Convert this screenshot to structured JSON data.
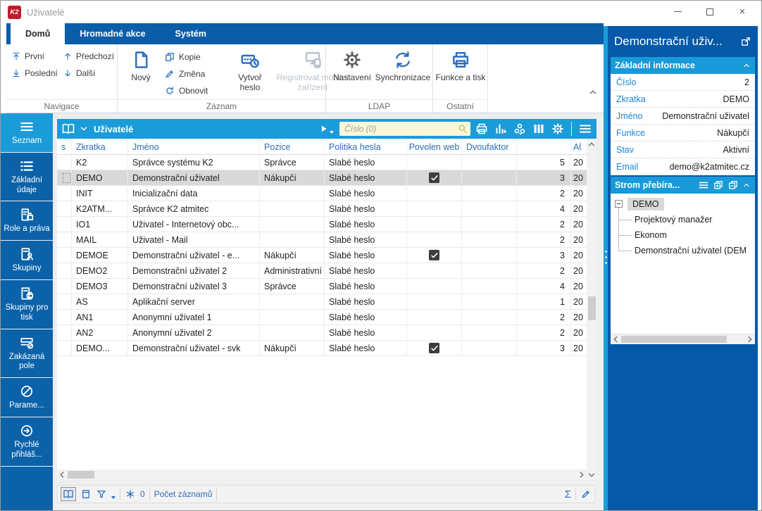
{
  "colors": {
    "accent_cyan": "#1b9cd8",
    "ribbon_blue": "#0a5ea9",
    "panel_blue": "#0559a8",
    "sidebar_blue": "#0b62a9",
    "icon_blue": "#2a6fbd",
    "selection_grey": "#d9d9d9",
    "search_bg": "#fcf8d7",
    "k2_red": "#c2182b"
  },
  "window": {
    "logo_text": "K2",
    "title": "Uživatelé"
  },
  "ribbon": {
    "tabs": [
      {
        "label": "Domů",
        "active": true
      },
      {
        "label": "Hromadné akce",
        "active": false
      },
      {
        "label": "Systém",
        "active": false
      }
    ],
    "navigace": {
      "label": "Navigace",
      "items": [
        {
          "label": "První",
          "icon": "first-icon"
        },
        {
          "label": "Poslední",
          "icon": "last-icon"
        },
        {
          "label": "Předchozí",
          "icon": "previous-icon"
        },
        {
          "label": "Další",
          "icon": "next-icon"
        }
      ]
    },
    "zaznam": {
      "label": "Záznam",
      "novy": "Nový",
      "kopie": "Kopie",
      "zmena": "Změna",
      "obnovit": "Obnovit",
      "vytvor_heslo": "Vytvoř heslo",
      "registrovat": "Registrovat mobilní zařízení"
    },
    "ldap": {
      "label": "LDAP",
      "nastaveni": "Nastavení",
      "synchronizace": "Synchronizace"
    },
    "ostatni": {
      "label": "Ostatní",
      "funkce_a_tisk": "Funkce a tisk"
    }
  },
  "sidebar": {
    "items": [
      {
        "key": "seznam",
        "label": "Seznam",
        "icon": "hamburger-icon",
        "active": true
      },
      {
        "key": "zakladni-udaje",
        "label": "Základní údaje",
        "icon": "list-icon",
        "active": false
      },
      {
        "key": "role-a-prava",
        "label": "Role a práva",
        "icon": "document-lock-icon",
        "active": false
      },
      {
        "key": "skupiny",
        "label": "Skupiny",
        "icon": "document-person-icon",
        "active": false
      },
      {
        "key": "skupiny-pro-tisk",
        "label": "Skupiny pro tisk",
        "icon": "document-printer-icon",
        "active": false
      },
      {
        "key": "zakazana-pole",
        "label": "Zakázaná pole",
        "icon": "forbidden-field-icon",
        "active": false
      },
      {
        "key": "parametry",
        "label": "Parame...",
        "icon": "circle-slash-icon",
        "active": false
      },
      {
        "key": "rychle-prihlaseni",
        "label": "Rychlé přihláš...",
        "icon": "circle-arrow-icon",
        "active": false
      }
    ]
  },
  "table": {
    "title": "Uživatelé",
    "search_placeholder": "Číslo (0)",
    "columns": [
      {
        "label": "s"
      },
      {
        "label": "Zkratka"
      },
      {
        "label": "Jméno"
      },
      {
        "label": "Pozice"
      },
      {
        "label": "Politika hesla"
      },
      {
        "label": "Povolen web"
      },
      {
        "label": "Dvoufaktor"
      },
      {
        "label": ""
      },
      {
        "label": "Al"
      }
    ],
    "rows": [
      {
        "zkratka": "K2",
        "jmeno": "Správce systému K2",
        "pozice": "Správce",
        "politika_hesla": "Slabé heslo",
        "povolen_web": false,
        "dvoufaktor": false,
        "pocet": "5",
        "al": "20",
        "selected": false
      },
      {
        "zkratka": "DEMO",
        "jmeno": "Demonstrační uživatel",
        "pozice": "Nákupčí",
        "politika_hesla": "Slabé heslo",
        "povolen_web": true,
        "dvoufaktor": false,
        "pocet": "3",
        "al": "20",
        "selected": true
      },
      {
        "zkratka": "INIT",
        "jmeno": "Inicializační data",
        "pozice": "",
        "politika_hesla": "Slabé heslo",
        "povolen_web": false,
        "dvoufaktor": false,
        "pocet": "2",
        "al": "20",
        "selected": false
      },
      {
        "zkratka": "K2ATM...",
        "jmeno": "Správce K2 atmitec",
        "pozice": "",
        "politika_hesla": "Slabé heslo",
        "povolen_web": false,
        "dvoufaktor": false,
        "pocet": "4",
        "al": "20",
        "selected": false
      },
      {
        "zkratka": "IO1",
        "jmeno": "Uživatel - Internetový obc...",
        "pozice": "",
        "politika_hesla": "Slabé heslo",
        "povolen_web": false,
        "dvoufaktor": false,
        "pocet": "2",
        "al": "20",
        "selected": false
      },
      {
        "zkratka": "MAIL",
        "jmeno": "Uživatel - Mail",
        "pozice": "",
        "politika_hesla": "Slabé heslo",
        "povolen_web": false,
        "dvoufaktor": false,
        "pocet": "2",
        "al": "20",
        "selected": false
      },
      {
        "zkratka": "DEMOE",
        "jmeno": "Demonstrační uživatel - e...",
        "pozice": "Nákupčí",
        "politika_hesla": "Slabé heslo",
        "povolen_web": true,
        "dvoufaktor": false,
        "pocet": "3",
        "al": "20",
        "selected": false
      },
      {
        "zkratka": "DEMO2",
        "jmeno": "Demonstrační uživatel 2",
        "pozice": "Administrativní p...",
        "politika_hesla": "Slabé heslo",
        "povolen_web": false,
        "dvoufaktor": false,
        "pocet": "2",
        "al": "20",
        "selected": false
      },
      {
        "zkratka": "DEMO3",
        "jmeno": "Demonstrační uživatel 3",
        "pozice": "Správce",
        "politika_hesla": "Slabé heslo",
        "povolen_web": false,
        "dvoufaktor": false,
        "pocet": "4",
        "al": "20",
        "selected": false
      },
      {
        "zkratka": "AS",
        "jmeno": "Aplikační server",
        "pozice": "",
        "politika_hesla": "Slabé heslo",
        "povolen_web": false,
        "dvoufaktor": false,
        "pocet": "1",
        "al": "20",
        "selected": false
      },
      {
        "zkratka": "AN1",
        "jmeno": "Anonymní uživatel 1",
        "pozice": "",
        "politika_hesla": "Slabé heslo",
        "povolen_web": false,
        "dvoufaktor": false,
        "pocet": "2",
        "al": "20",
        "selected": false
      },
      {
        "zkratka": "AN2",
        "jmeno": "Anonymní uživatel 2",
        "pozice": "",
        "politika_hesla": "Slabé heslo",
        "povolen_web": false,
        "dvoufaktor": false,
        "pocet": "2",
        "al": "20",
        "selected": false
      },
      {
        "zkratka": "DEMO...",
        "jmeno": "Demonstrační uživatel - svk",
        "pozice": "Nákupčí",
        "politika_hesla": "Slabé heslo",
        "povolen_web": true,
        "dvoufaktor": false,
        "pocet": "3",
        "al": "20",
        "selected": false
      }
    ]
  },
  "statusbar": {
    "frozen_count": "0",
    "count_label": "Počet záznamů"
  },
  "detail": {
    "title": "Demonstrační uživ...",
    "basic_info": {
      "title": "Základní informace",
      "fields": [
        {
          "label": "Číslo",
          "value": "2"
        },
        {
          "label": "Zkratka",
          "value": "DEMO"
        },
        {
          "label": "Jméno",
          "value": "Demonstrační uživatel"
        },
        {
          "label": "Funkce",
          "value": "Nákupčí"
        },
        {
          "label": "Stav",
          "value": "Aktivní"
        },
        {
          "label": "Email",
          "value": "demo@k2atmitec.cz"
        }
      ]
    },
    "tree_panel": {
      "title": "Strom přebíra...",
      "root": "DEMO",
      "children": [
        "Projektový manažer",
        "Ekonom",
        "Demonstrační uživatel (DEM"
      ]
    }
  }
}
